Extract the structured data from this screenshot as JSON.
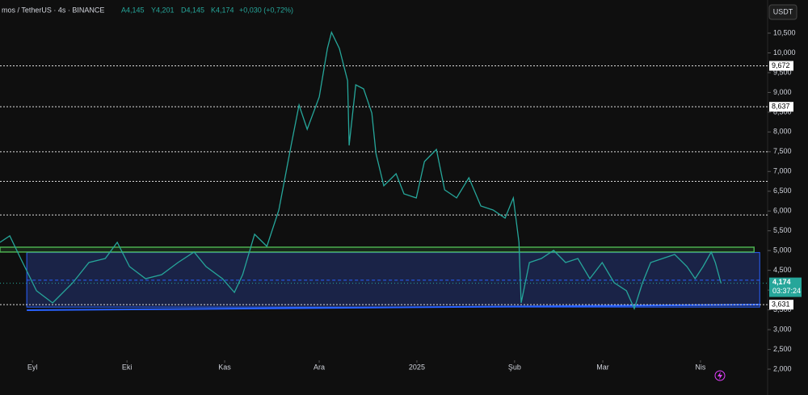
{
  "chart_data": {
    "type": "line",
    "symbol": "mos / TetherUS · 4s · BINANCE",
    "ohlc": [
      "A4,145",
      "Y4,201",
      "D4,145",
      "K4,174"
    ],
    "change": "+0,030 (+0,72%)",
    "currency": "USDT",
    "xlim": [
      -10.3,
      233.3
    ],
    "ylim": [
      1346,
      11338
    ],
    "xticks": [
      {
        "value": 0,
        "label": "Eyl"
      },
      {
        "value": 30,
        "label": "Eki"
      },
      {
        "value": 61,
        "label": "Kas"
      },
      {
        "value": 91,
        "label": "Ara"
      },
      {
        "value": 122,
        "label": "2025"
      },
      {
        "value": 153,
        "label": "Şub"
      },
      {
        "value": 181,
        "label": "Mar"
      },
      {
        "value": 212,
        "label": "Nis"
      }
    ],
    "yticks": [
      {
        "value": 2000,
        "label": "2,000"
      },
      {
        "value": 2500,
        "label": "2,500"
      },
      {
        "value": 3000,
        "label": "3,000"
      },
      {
        "value": 3500,
        "label": "3,500"
      },
      {
        "value": 4000,
        "label": "4,000"
      },
      {
        "value": 4500,
        "label": "4,500"
      },
      {
        "value": 5000,
        "label": "5,000"
      },
      {
        "value": 5500,
        "label": "5,500"
      },
      {
        "value": 6000,
        "label": "6,000"
      },
      {
        "value": 6500,
        "label": "6,500"
      },
      {
        "value": 7000,
        "label": "7,000"
      },
      {
        "value": 7500,
        "label": "7,500"
      },
      {
        "value": 8000,
        "label": "8,000"
      },
      {
        "value": 8500,
        "label": "8,500"
      },
      {
        "value": 9000,
        "label": "9,000"
      },
      {
        "value": 9500,
        "label": "9,500"
      },
      {
        "value": 10000,
        "label": "10,000"
      },
      {
        "value": 10500,
        "label": "10,500"
      }
    ],
    "series": [
      {
        "color": "#26a69a",
        "x": [
          -10.3,
          -7.2,
          -4.0,
          1.3,
          6.4,
          12.8,
          17.9,
          23.1,
          26.9,
          30.8,
          35.9,
          41.0,
          46.2,
          51.3,
          55.1,
          60.3,
          64.1,
          66.7,
          70.5,
          74.4,
          78.2,
          82.1,
          84.6,
          87.2,
          91.0,
          93.6,
          94.9,
          97.4,
          100.0,
          100.5,
          102.6,
          105.1,
          107.7,
          109.0,
          111.5,
          115.4,
          117.9,
          121.8,
          124.4,
          128.2,
          130.8,
          134.6,
          138.5,
          142.3,
          146.2,
          150.0,
          152.6,
          154.4,
          155.1,
          157.7,
          161.5,
          165.4,
          169.2,
          173.1,
          176.9,
          180.8,
          184.6,
          188.5,
          191.0,
          193.6,
          196.2,
          200.0,
          203.8,
          207.7,
          210.3,
          212.8,
          215.4,
          216.7,
          218.5
        ],
        "values": [
          5208,
          5371,
          4840,
          3982,
          3676,
          4186,
          4697,
          4800,
          5208,
          4595,
          4288,
          4391,
          4697,
          4963,
          4595,
          4288,
          3941,
          4391,
          5412,
          5106,
          6025,
          7660,
          8682,
          8069,
          8886,
          10112,
          10521,
          10112,
          9295,
          7660,
          9192,
          9090,
          8477,
          7456,
          6638,
          6945,
          6434,
          6332,
          7251,
          7558,
          6536,
          6332,
          6843,
          6127,
          6025,
          5821,
          6332,
          5208,
          3676,
          4697,
          4800,
          5004,
          4697,
          4800,
          4288,
          4697,
          4186,
          3982,
          3532,
          4186,
          4697,
          4800,
          4902,
          4595,
          4288,
          4595,
          4963,
          4697,
          4174
        ]
      }
    ],
    "hlines": [
      {
        "value": 9672,
        "label": "9,672"
      },
      {
        "value": 8637,
        "label": "8,637"
      },
      {
        "value": 7500
      },
      {
        "value": 6750
      },
      {
        "value": 5900
      }
    ],
    "resistance": {
      "top": 5085,
      "bottom": 4963,
      "x": [
        -10.3,
        229
      ]
    },
    "zone": {
      "top": 4950,
      "bottom": 3570,
      "mid": 4250,
      "x": [
        -1.8,
        230.8
      ]
    },
    "support": {
      "x": [
        -1.8,
        230.8
      ],
      "values": [
        3492,
        3631
      ],
      "label": "3,631"
    },
    "current": {
      "value": 4174,
      "label": "4,174",
      "countdown": "03:37:24"
    }
  }
}
